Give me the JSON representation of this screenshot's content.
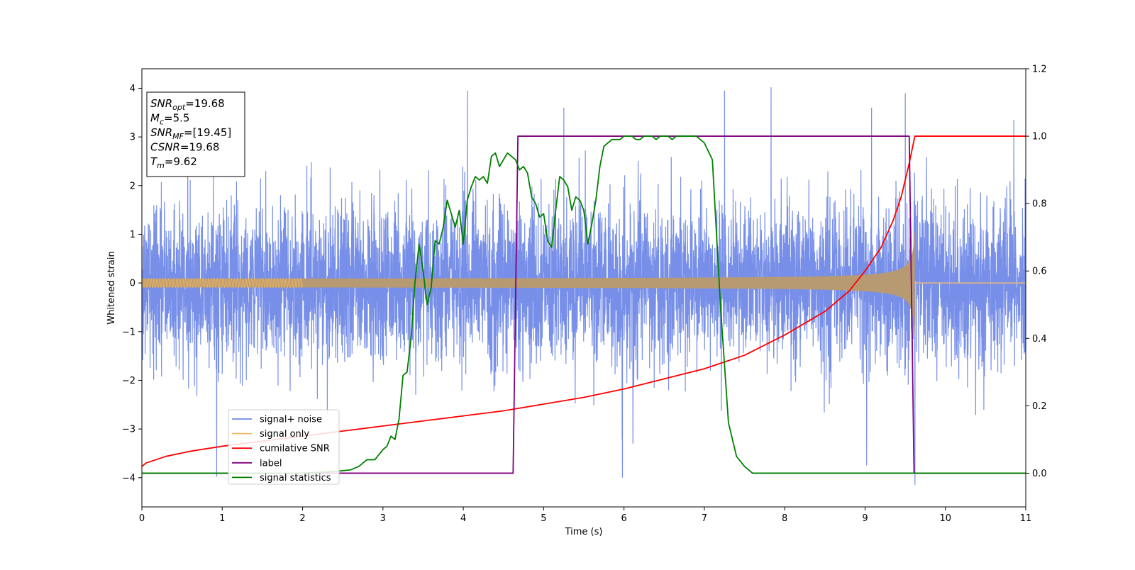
{
  "chart_data": {
    "type": "line",
    "xlabel": "Time (s)",
    "ylabel": "Whitened strain",
    "xlim": [
      0,
      11
    ],
    "ylim": [
      -4.6,
      4.4
    ],
    "y2lim": [
      -0.1,
      1.2
    ],
    "xticks": [
      "0",
      "1",
      "2",
      "3",
      "4",
      "5",
      "6",
      "7",
      "8",
      "9",
      "10",
      "11"
    ],
    "yticks": [
      "−4",
      "−3",
      "−2",
      "−1",
      "0",
      "1",
      "2",
      "3",
      "4"
    ],
    "y2ticks": [
      "0.0",
      "0.2",
      "0.4",
      "0.6",
      "0.8",
      "1.0",
      "1.2"
    ],
    "grid": false,
    "legend_position": "lower-left",
    "legend": [
      {
        "label": "signal+ noise",
        "color": "#6b86e6"
      },
      {
        "label": "signal only",
        "color": "#f5b860"
      },
      {
        "label": "cumilative SNR",
        "color": "#ff0000"
      },
      {
        "label": "label",
        "color": "#800080"
      },
      {
        "label": "signal statistics",
        "color": "#008000"
      }
    ],
    "info_box": [
      {
        "main": "SNR",
        "sub": "opt",
        "rest": "=19.68"
      },
      {
        "main": "M",
        "sub": "c",
        "rest": "=5.5"
      },
      {
        "main": "SNR",
        "sub": "MF",
        "rest": "=[19.45]"
      },
      {
        "main": "CSNR",
        "sub": "",
        "rest": "=19.68"
      },
      {
        "main": "T",
        "sub": "m",
        "rest": "=9.62"
      }
    ],
    "series": [
      {
        "name": "signal+ noise",
        "axis": "left",
        "color": "#6b86e6",
        "noise_sigma": 1.0,
        "extremes": [
          [
            0.93,
            -3.98
          ],
          [
            4.05,
            3.95
          ],
          [
            5.25,
            3.6
          ],
          [
            5.98,
            -4.0
          ],
          [
            7.25,
            3.95
          ],
          [
            7.83,
            4.02
          ],
          [
            9.02,
            -3.75
          ],
          [
            9.08,
            3.6
          ],
          [
            9.5,
            3.9
          ],
          [
            9.62,
            -4.15
          ],
          [
            10.85,
            3.35
          ]
        ]
      },
      {
        "name": "signal only",
        "axis": "left",
        "color": "#f5b860",
        "envelope": {
          "t_merge": 9.62,
          "amp_start": 0.09,
          "amp_end": 1.15,
          "end_value": 0.0
        }
      },
      {
        "name": "cumilative SNR",
        "axis": "right",
        "color": "#ff0000",
        "x": [
          0,
          0.05,
          0.3,
          0.6,
          1.0,
          1.5,
          2.0,
          2.5,
          3.0,
          3.5,
          4.0,
          4.5,
          5.0,
          5.5,
          6.0,
          6.5,
          7.0,
          7.5,
          8.0,
          8.5,
          8.8,
          9.0,
          9.2,
          9.35,
          9.45,
          9.55,
          9.62,
          11.0
        ],
        "y": [
          0.02,
          0.03,
          0.05,
          0.065,
          0.08,
          0.095,
          0.11,
          0.125,
          0.14,
          0.155,
          0.17,
          0.185,
          0.205,
          0.225,
          0.25,
          0.28,
          0.31,
          0.35,
          0.41,
          0.48,
          0.54,
          0.6,
          0.67,
          0.75,
          0.82,
          0.92,
          1.0,
          1.0
        ]
      },
      {
        "name": "label",
        "axis": "right",
        "color": "#800080",
        "x": [
          0,
          4.62,
          4.68,
          9.55,
          9.61,
          11.0
        ],
        "y": [
          0.0,
          0.0,
          1.0,
          1.0,
          0.0,
          0.0
        ]
      },
      {
        "name": "signal statistics",
        "axis": "right",
        "color": "#008000",
        "x": [
          0,
          1.0,
          2.0,
          2.4,
          2.6,
          2.7,
          2.8,
          2.9,
          3.0,
          3.05,
          3.1,
          3.15,
          3.2,
          3.25,
          3.3,
          3.35,
          3.4,
          3.45,
          3.5,
          3.55,
          3.6,
          3.65,
          3.7,
          3.75,
          3.8,
          3.85,
          3.9,
          3.95,
          4.0,
          4.05,
          4.1,
          4.15,
          4.2,
          4.25,
          4.3,
          4.35,
          4.4,
          4.45,
          4.5,
          4.55,
          4.6,
          4.65,
          4.7,
          4.75,
          4.8,
          4.85,
          4.9,
          4.95,
          5.0,
          5.05,
          5.1,
          5.15,
          5.2,
          5.25,
          5.3,
          5.35,
          5.4,
          5.45,
          5.5,
          5.55,
          5.6,
          5.65,
          5.7,
          5.75,
          5.8,
          5.85,
          5.9,
          5.95,
          6.0,
          6.05,
          6.1,
          6.15,
          6.2,
          6.25,
          6.3,
          6.35,
          6.4,
          6.45,
          6.5,
          6.55,
          6.6,
          6.65,
          6.7,
          6.75,
          6.8,
          6.9,
          7.0,
          7.1,
          7.2,
          7.3,
          7.4,
          7.5,
          7.6,
          7.7,
          7.8,
          7.9,
          8.0,
          8.1,
          8.2,
          8.3,
          8.4,
          8.5,
          8.6,
          8.7,
          8.8,
          8.9,
          9.0,
          9.1,
          9.2,
          9.3,
          9.4,
          9.5,
          9.55,
          9.6,
          9.62,
          9.65,
          9.7,
          9.8,
          10.0,
          11.0
        ],
        "y": [
          0.0,
          0.0,
          0.0,
          0.005,
          0.01,
          0.02,
          0.04,
          0.04,
          0.07,
          0.08,
          0.11,
          0.1,
          0.16,
          0.29,
          0.3,
          0.4,
          0.57,
          0.68,
          0.6,
          0.5,
          0.55,
          0.69,
          0.68,
          0.73,
          0.81,
          0.77,
          0.73,
          0.78,
          0.68,
          0.81,
          0.85,
          0.88,
          0.87,
          0.88,
          0.86,
          0.94,
          0.95,
          0.91,
          0.93,
          0.95,
          0.94,
          0.93,
          0.9,
          0.91,
          0.89,
          0.82,
          0.8,
          0.76,
          0.77,
          0.69,
          0.67,
          0.78,
          0.88,
          0.87,
          0.85,
          0.78,
          0.82,
          0.81,
          0.78,
          0.68,
          0.74,
          0.81,
          0.91,
          0.97,
          0.98,
          0.99,
          0.99,
          0.99,
          1.0,
          1.0,
          1.0,
          0.99,
          0.99,
          1.0,
          1.0,
          1.0,
          0.99,
          1.0,
          1.0,
          1.0,
          0.99,
          1.0,
          1.0,
          1.0,
          1.0,
          1.0,
          0.98,
          0.93,
          0.5,
          0.15,
          0.05,
          0.02,
          0.0,
          0.0,
          0.0,
          0.0,
          0.0,
          0.0,
          0.0,
          0.0,
          0.0,
          0.0,
          0.0,
          0.0,
          0.0,
          0.0,
          0.0,
          0.0,
          0.0,
          0.0,
          0.0,
          0.0,
          0.0,
          0.0,
          0.0,
          0.0,
          0.0,
          0.0,
          0.0,
          0.0
        ]
      }
    ]
  }
}
